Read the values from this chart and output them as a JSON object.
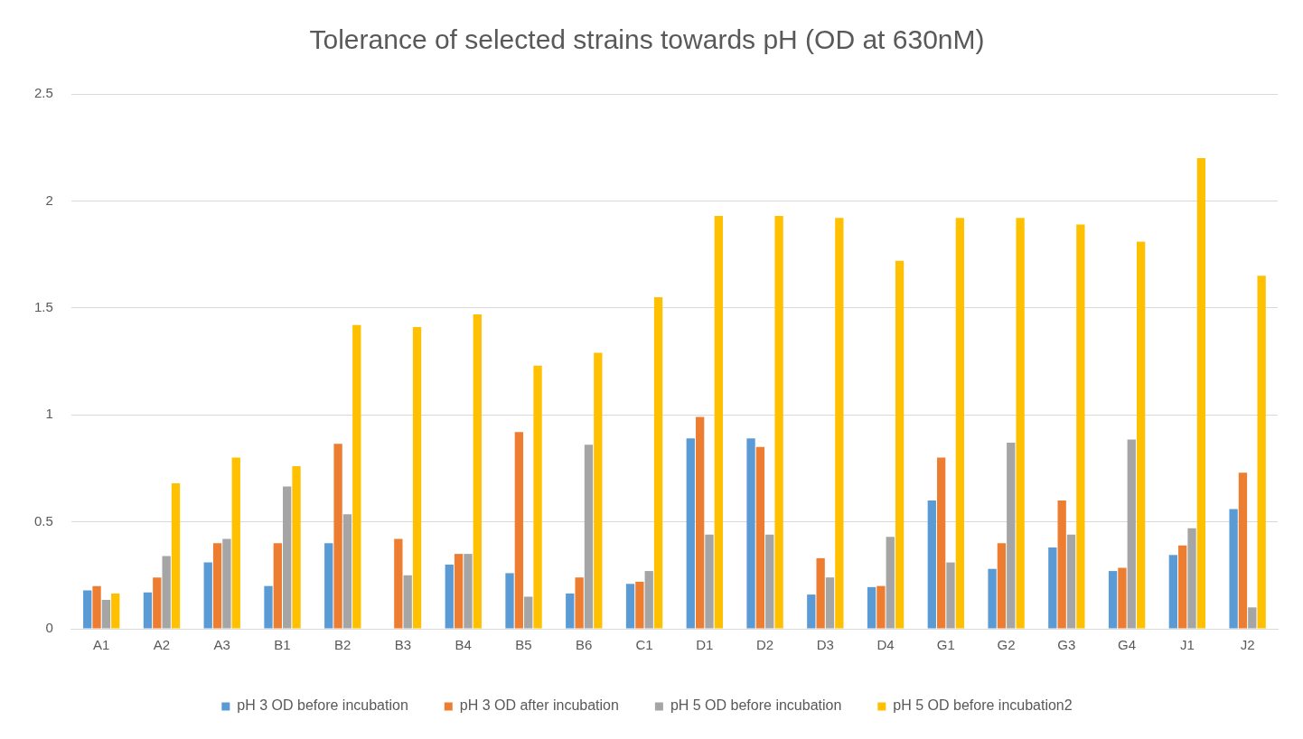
{
  "chart_data": {
    "type": "bar",
    "title": "Tolerance of selected strains towards pH (OD at 630nM)",
    "categories": [
      "A1",
      "A2",
      "A3",
      "B1",
      "B2",
      "B3",
      "B4",
      "B5",
      "B6",
      "C1",
      "D1",
      "D2",
      "D3",
      "D4",
      "G1",
      "G2",
      "G3",
      "G4",
      "J1",
      "J2"
    ],
    "series": [
      {
        "name": "pH 3 OD before incubation",
        "color": "#5b9bd5",
        "values": [
          0.18,
          0.17,
          0.31,
          0.2,
          0.4,
          0,
          0.3,
          0.26,
          0.165,
          0.21,
          0.89,
          0.89,
          0.16,
          0.195,
          0.6,
          0.28,
          0.38,
          0.27,
          0.345,
          0.56
        ]
      },
      {
        "name": "pH 3 OD after incubation",
        "color": "#ed7d31",
        "values": [
          0.2,
          0.24,
          0.4,
          0.4,
          0.865,
          0.42,
          0.35,
          0.92,
          0.24,
          0.22,
          0.99,
          0.85,
          0.33,
          0.2,
          0.8,
          0.4,
          0.6,
          0.285,
          0.39,
          0.73
        ]
      },
      {
        "name": "pH 5 OD before incubation",
        "color": "#a5a5a5",
        "values": [
          0.135,
          0.34,
          0.42,
          0.665,
          0.535,
          0.25,
          0.35,
          0.15,
          0.86,
          0.27,
          0.44,
          0.44,
          0.24,
          0.43,
          0.31,
          0.87,
          0.44,
          0.885,
          0.47,
          0.1
        ]
      },
      {
        "name": "pH 5 OD before incubation2",
        "color": "#ffc000",
        "values": [
          0.165,
          0.68,
          0.8,
          0.76,
          1.42,
          1.41,
          1.47,
          1.23,
          1.29,
          1.55,
          1.93,
          1.93,
          1.92,
          1.72,
          1.92,
          1.92,
          1.89,
          1.81,
          2.2,
          1.65
        ]
      }
    ],
    "ylim": [
      0,
      2.5
    ],
    "yticks": [
      0,
      0.5,
      1,
      1.5,
      2,
      2.5
    ],
    "grid": "y",
    "legend": "bottom"
  }
}
